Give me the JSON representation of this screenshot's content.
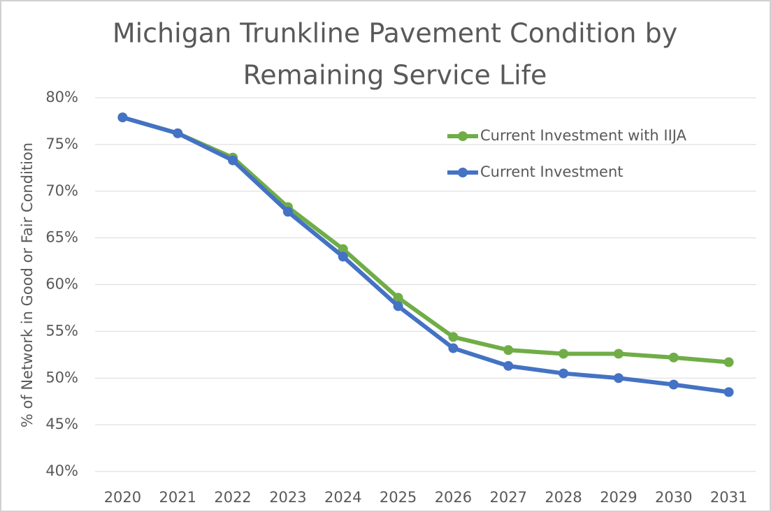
{
  "chart_data": {
    "type": "line",
    "title": "Michigan Trunkline Pavement Condition by",
    "title_line2": "Remaining Service Life",
    "y_label": "% of Network in Good or Fair Condition",
    "categories": [
      "2020",
      "2021",
      "2022",
      "2023",
      "2024",
      "2025",
      "2026",
      "2027",
      "2028",
      "2029",
      "2030",
      "2031"
    ],
    "series": [
      {
        "name": "Current Investment with IIJA",
        "color": "#70ad47",
        "values": [
          77.9,
          76.2,
          73.6,
          68.3,
          63.8,
          58.6,
          54.4,
          53.0,
          52.6,
          52.6,
          52.2,
          51.7
        ]
      },
      {
        "name": "Current Investment",
        "color": "#4472c4",
        "values": [
          77.9,
          76.2,
          73.3,
          67.8,
          63.0,
          57.7,
          53.2,
          51.3,
          50.5,
          50.0,
          49.3,
          48.5
        ]
      }
    ],
    "ylim": [
      40,
      80
    ],
    "yticks": [
      {
        "value": 40,
        "label": "40%"
      },
      {
        "value": 45,
        "label": "45%"
      },
      {
        "value": 50,
        "label": "50%"
      },
      {
        "value": 55,
        "label": "55%"
      },
      {
        "value": 60,
        "label": "60%"
      },
      {
        "value": 65,
        "label": "65%"
      },
      {
        "value": 70,
        "label": "70%"
      },
      {
        "value": 75,
        "label": "75%"
      },
      {
        "value": 80,
        "label": "80%"
      }
    ],
    "grid": true,
    "legend": "upper right"
  }
}
